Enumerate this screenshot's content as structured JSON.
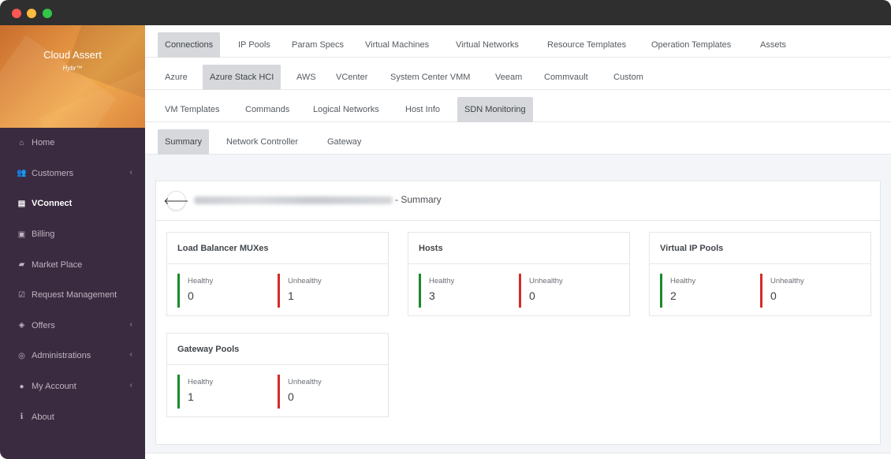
{
  "brand": {
    "title": "Cloud Assert",
    "subtitle": "Hybr™"
  },
  "sidebar": {
    "items": [
      {
        "label": "Home",
        "icon": "home-icon",
        "glyph": "⌂",
        "chevron": false,
        "active": false
      },
      {
        "label": "Customers",
        "icon": "users-icon",
        "glyph": "👥",
        "chevron": true,
        "active": false
      },
      {
        "label": "VConnect",
        "icon": "server-icon",
        "glyph": "▤",
        "chevron": false,
        "active": true
      },
      {
        "label": "Billing",
        "icon": "money-icon",
        "glyph": "▣",
        "chevron": false,
        "active": false
      },
      {
        "label": "Market Place",
        "icon": "shopping-bag-icon",
        "glyph": "▰",
        "chevron": false,
        "active": false
      },
      {
        "label": "Request Management",
        "icon": "check-square-icon",
        "glyph": "☑",
        "chevron": false,
        "active": false
      },
      {
        "label": "Offers",
        "icon": "tags-icon",
        "glyph": "◈",
        "chevron": true,
        "active": false
      },
      {
        "label": "Administrations",
        "icon": "globe-icon",
        "glyph": "◎",
        "chevron": true,
        "active": false
      },
      {
        "label": "My Account",
        "icon": "user-icon",
        "glyph": "●",
        "chevron": true,
        "active": false
      },
      {
        "label": "About",
        "icon": "info-icon",
        "glyph": "ℹ",
        "chevron": false,
        "active": false
      }
    ],
    "chevron_glyph": "‹"
  },
  "tabs_row1": [
    "Connections",
    "IP Pools",
    "Param Specs",
    "Virtual Machines",
    "Virtual Networks",
    "Resource Templates",
    "Operation Templates",
    "Assets"
  ],
  "tabs_row2": [
    "Azure",
    "Azure Stack HCI",
    "AWS",
    "VCenter",
    "System Center VMM",
    "Veeam",
    "Commvault",
    "Custom"
  ],
  "tabs_row3": [
    "VM Templates",
    "Commands",
    "Logical Networks",
    "Host Info",
    "SDN Monitoring"
  ],
  "tabs_row4": [
    "Summary",
    "Network Controller",
    "Gateway"
  ],
  "selected": {
    "row1": "Connections",
    "row2": "Azure Stack HCI",
    "row3": "SDN Monitoring",
    "row4": "Summary"
  },
  "panel": {
    "back_icon": "arrow-left-icon",
    "back_glyph": "🡐",
    "summary_suffix": "- Summary"
  },
  "cards": [
    {
      "title": "Load Balancer MUXes",
      "healthy_label": "Healthy",
      "healthy": "0",
      "unhealthy_label": "Unhealthy",
      "unhealthy": "1"
    },
    {
      "title": "Hosts",
      "healthy_label": "Healthy",
      "healthy": "3",
      "unhealthy_label": "Unhealthy",
      "unhealthy": "0"
    },
    {
      "title": "Virtual IP Pools",
      "healthy_label": "Healthy",
      "healthy": "2",
      "unhealthy_label": "Unhealthy",
      "unhealthy": "0"
    },
    {
      "title": "Gateway Pools",
      "healthy_label": "Healthy",
      "healthy": "1",
      "unhealthy_label": "Unhealthy",
      "unhealthy": "0"
    }
  ],
  "colors": {
    "healthy": "#1b8a2a",
    "unhealthy": "#d62a2a",
    "sidebar": "#3b2b40"
  }
}
